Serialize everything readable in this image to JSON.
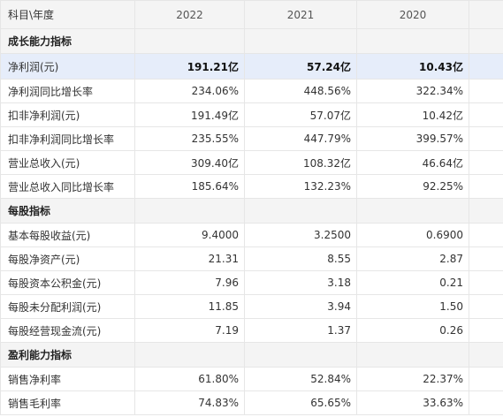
{
  "header": {
    "label": "科目\\年度",
    "years": [
      "2022",
      "2021",
      "2020"
    ]
  },
  "rows": [
    {
      "type": "section",
      "label": "成长能力指标"
    },
    {
      "type": "highlight",
      "label": "净利润(元)",
      "values": [
        "191.21亿",
        "57.24亿",
        "10.43亿"
      ]
    },
    {
      "type": "row",
      "label": "净利润同比增长率",
      "values": [
        "234.06%",
        "448.56%",
        "322.34%"
      ]
    },
    {
      "type": "row",
      "label": "扣非净利润(元)",
      "values": [
        "191.49亿",
        "57.07亿",
        "10.42亿"
      ]
    },
    {
      "type": "row",
      "label": "扣非净利润同比增长率",
      "values": [
        "235.55%",
        "447.79%",
        "399.57%"
      ]
    },
    {
      "type": "row",
      "label": "营业总收入(元)",
      "values": [
        "309.40亿",
        "108.32亿",
        "46.64亿"
      ]
    },
    {
      "type": "row",
      "label": "营业总收入同比增长率",
      "values": [
        "185.64%",
        "132.23%",
        "92.25%"
      ]
    },
    {
      "type": "section",
      "label": "每股指标"
    },
    {
      "type": "row",
      "label": "基本每股收益(元)",
      "values": [
        "9.4000",
        "3.2500",
        "0.6900"
      ]
    },
    {
      "type": "row",
      "label": "每股净资产(元)",
      "values": [
        "21.31",
        "8.55",
        "2.87"
      ]
    },
    {
      "type": "row",
      "label": "每股资本公积金(元)",
      "values": [
        "7.96",
        "3.18",
        "0.21"
      ]
    },
    {
      "type": "row",
      "label": "每股未分配利润(元)",
      "values": [
        "11.85",
        "3.94",
        "1.50"
      ]
    },
    {
      "type": "row",
      "label": "每股经营现金流(元)",
      "values": [
        "7.19",
        "1.37",
        "0.26"
      ]
    },
    {
      "type": "section",
      "label": "盈利能力指标"
    },
    {
      "type": "row",
      "label": "销售净利率",
      "values": [
        "61.80%",
        "52.84%",
        "22.37%"
      ]
    },
    {
      "type": "row",
      "label": "销售毛利率",
      "values": [
        "74.83%",
        "65.65%",
        "33.63%"
      ]
    }
  ]
}
